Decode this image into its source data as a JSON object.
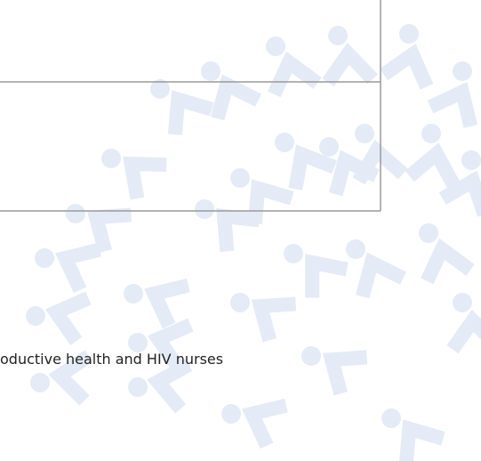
{
  "text": "oductive health and HIV nurses"
}
